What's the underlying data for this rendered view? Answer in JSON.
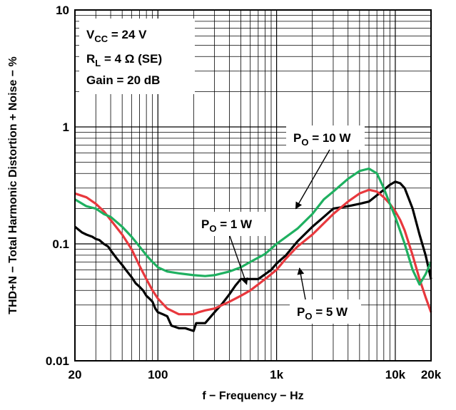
{
  "chart_data": {
    "type": "line",
    "title": "",
    "xlabel": "f − Frequency − Hz",
    "ylabel": "THD+N − Total Harmonic Distortion + Noise − %",
    "x_scale": "log",
    "y_scale": "log",
    "xlim": [
      20,
      20000
    ],
    "ylim": [
      0.01,
      10
    ],
    "grid": true,
    "x_ticks": [
      {
        "value": 20,
        "label": "20"
      },
      {
        "value": 100,
        "label": "100"
      },
      {
        "value": 1000,
        "label": "1k"
      },
      {
        "value": 10000,
        "label": "10k"
      },
      {
        "value": 20000,
        "label": "20k"
      }
    ],
    "y_ticks": [
      {
        "value": 10,
        "label": "10"
      },
      {
        "value": 1,
        "label": "1"
      },
      {
        "value": 0.1,
        "label": "0.1"
      },
      {
        "value": 0.01,
        "label": "0.01"
      }
    ],
    "conditions": {
      "vcc_main": "V",
      "vcc_sub": "CC",
      "vcc_value": " = 24 V",
      "rl_main": "R",
      "rl_sub": "L",
      "rl_value": " = 4 Ω (SE)",
      "gain": "Gain = 20 dB"
    },
    "annotations": [
      {
        "main": "P",
        "sub": "O",
        "rest": " = 10 W",
        "target_x": 1450,
        "target_y": 0.2
      },
      {
        "main": "P",
        "sub": "O",
        "rest": " = 1 W",
        "target_x": 560,
        "target_y": 0.045
      },
      {
        "main": "P",
        "sub": "O",
        "rest": " = 5 W",
        "target_x": 1560,
        "target_y": 0.062
      }
    ],
    "series": [
      {
        "color": "#000000",
        "x": [
          20,
          23,
          25,
          28,
          30,
          32,
          35,
          38,
          40,
          45,
          50,
          55,
          60,
          65,
          70,
          75,
          80,
          85,
          90,
          95,
          100,
          110,
          120,
          130,
          150,
          170,
          200,
          210,
          250,
          300,
          350,
          400,
          450,
          500,
          600,
          700,
          800,
          900,
          1000,
          1200,
          1500,
          2000,
          2500,
          3000,
          4000,
          5000,
          6000,
          7000,
          8000,
          9000,
          10000,
          11000,
          12000,
          14000,
          16000,
          18000,
          20000
        ],
        "y": [
          0.14,
          0.125,
          0.12,
          0.115,
          0.11,
          0.108,
          0.1,
          0.095,
          0.088,
          0.075,
          0.066,
          0.058,
          0.052,
          0.046,
          0.043,
          0.04,
          0.036,
          0.034,
          0.032,
          0.028,
          0.026,
          0.025,
          0.024,
          0.02,
          0.019,
          0.019,
          0.018,
          0.021,
          0.021,
          0.026,
          0.031,
          0.037,
          0.044,
          0.05,
          0.05,
          0.05,
          0.055,
          0.06,
          0.068,
          0.08,
          0.105,
          0.14,
          0.17,
          0.2,
          0.21,
          0.22,
          0.23,
          0.26,
          0.29,
          0.32,
          0.34,
          0.33,
          0.3,
          0.2,
          0.12,
          0.08,
          0.05
        ]
      },
      {
        "color": "#e8383d",
        "x": [
          20,
          25,
          30,
          35,
          40,
          50,
          60,
          70,
          80,
          90,
          100,
          120,
          150,
          180,
          200,
          220,
          250,
          300,
          400,
          500,
          600,
          700,
          800,
          1000,
          1200,
          1500,
          2000,
          2500,
          3000,
          4000,
          5000,
          6000,
          7000,
          8000,
          9000,
          10000,
          11000,
          12000,
          14000,
          16000,
          18000,
          20000
        ],
        "y": [
          0.27,
          0.25,
          0.22,
          0.19,
          0.16,
          0.12,
          0.09,
          0.065,
          0.05,
          0.04,
          0.034,
          0.028,
          0.025,
          0.025,
          0.025,
          0.026,
          0.027,
          0.028,
          0.032,
          0.036,
          0.04,
          0.045,
          0.05,
          0.06,
          0.075,
          0.095,
          0.12,
          0.15,
          0.18,
          0.23,
          0.27,
          0.29,
          0.28,
          0.25,
          0.22,
          0.19,
          0.16,
          0.13,
          0.08,
          0.05,
          0.035,
          0.026
        ]
      },
      {
        "color": "#1fb060",
        "x": [
          20,
          25,
          30,
          35,
          40,
          50,
          60,
          70,
          80,
          90,
          100,
          120,
          150,
          200,
          250,
          300,
          400,
          500,
          600,
          800,
          1000,
          1500,
          2000,
          2500,
          3000,
          4000,
          5000,
          6000,
          7000,
          8000,
          9000,
          10000,
          12000,
          14000,
          16000,
          18000,
          20000
        ],
        "y": [
          0.24,
          0.21,
          0.2,
          0.18,
          0.17,
          0.14,
          0.115,
          0.095,
          0.08,
          0.07,
          0.063,
          0.058,
          0.056,
          0.054,
          0.053,
          0.054,
          0.058,
          0.063,
          0.07,
          0.082,
          0.1,
          0.135,
          0.18,
          0.24,
          0.28,
          0.36,
          0.42,
          0.44,
          0.4,
          0.3,
          0.22,
          0.17,
          0.1,
          0.06,
          0.045,
          0.055,
          0.07
        ]
      }
    ]
  }
}
